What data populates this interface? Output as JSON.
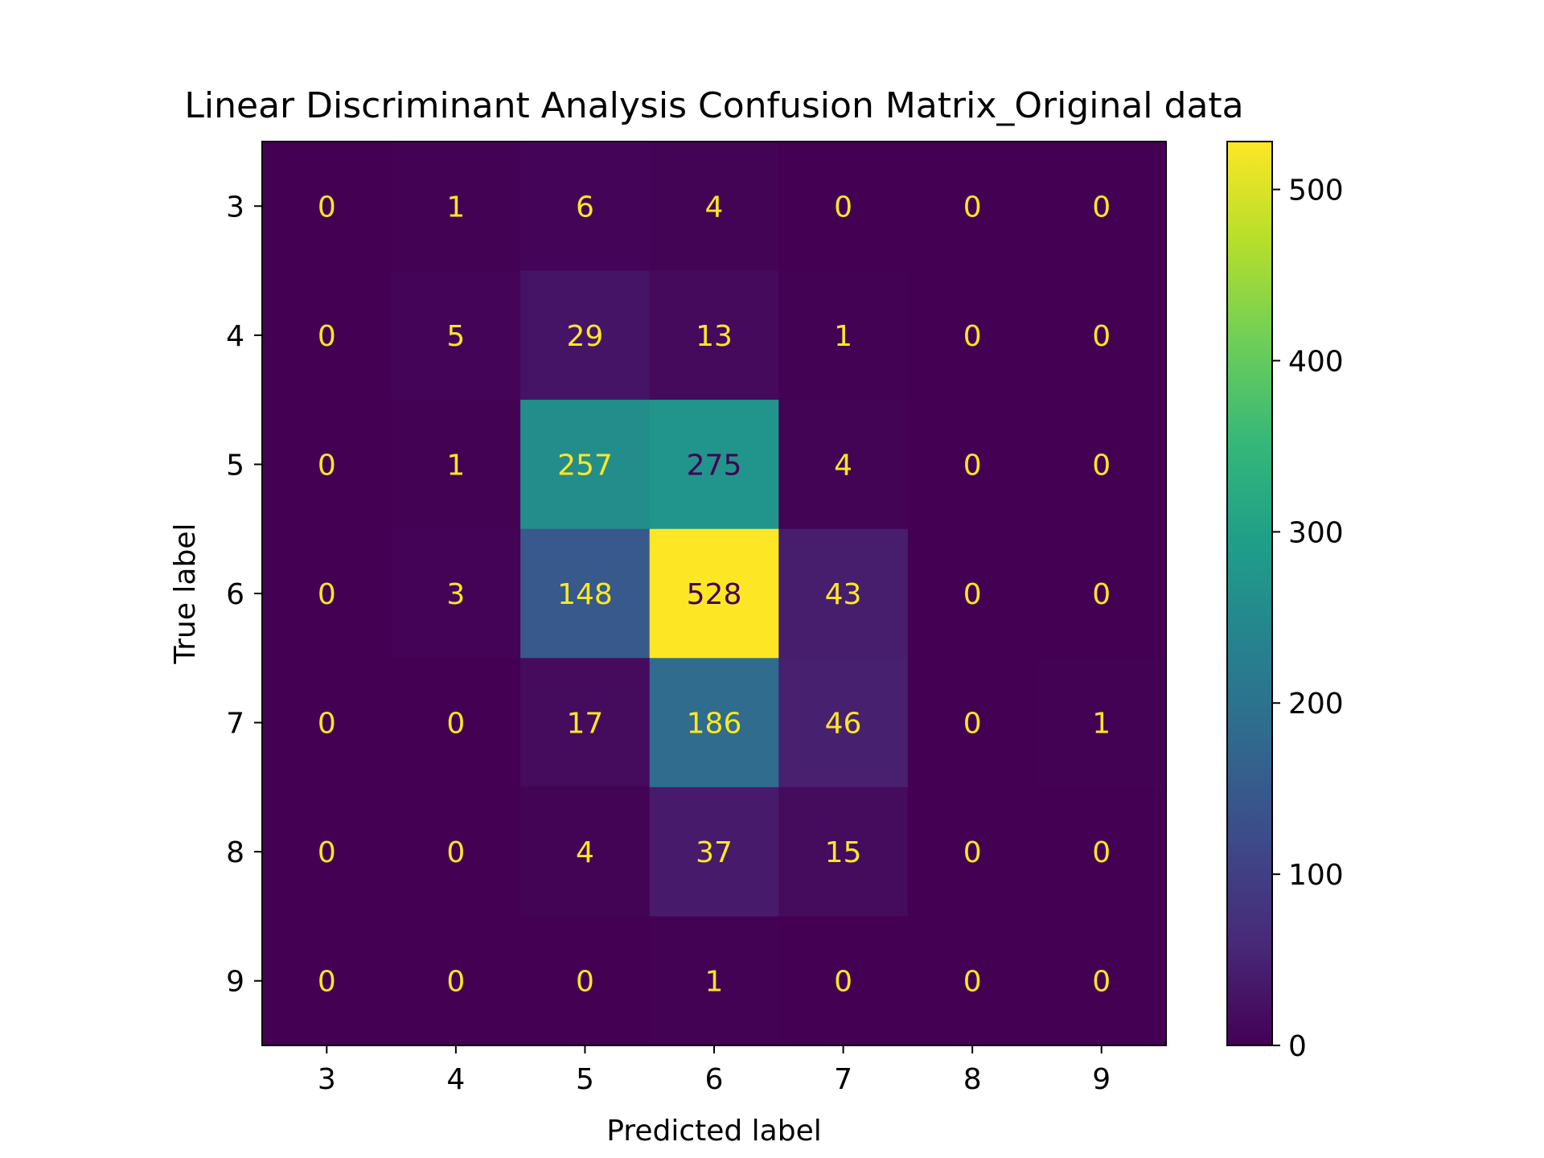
{
  "chart_data": {
    "type": "heatmap",
    "title": "Linear Discriminant Analysis Confusion Matrix_Original data",
    "xlabel": "Predicted label",
    "ylabel": "True label",
    "x_categories": [
      "3",
      "4",
      "5",
      "6",
      "7",
      "8",
      "9"
    ],
    "y_categories": [
      "3",
      "4",
      "5",
      "6",
      "7",
      "8",
      "9"
    ],
    "values": [
      [
        0,
        1,
        6,
        4,
        0,
        0,
        0
      ],
      [
        0,
        5,
        29,
        13,
        1,
        0,
        0
      ],
      [
        0,
        1,
        257,
        275,
        4,
        0,
        0
      ],
      [
        0,
        3,
        148,
        528,
        43,
        0,
        0
      ],
      [
        0,
        0,
        17,
        186,
        46,
        0,
        1
      ],
      [
        0,
        0,
        4,
        37,
        15,
        0,
        0
      ],
      [
        0,
        0,
        0,
        1,
        0,
        0,
        0
      ]
    ],
    "colormap": "viridis",
    "colorbar": {
      "range": [
        0,
        528
      ],
      "ticks": [
        0,
        100,
        200,
        300,
        400,
        500
      ]
    },
    "grid": false
  }
}
